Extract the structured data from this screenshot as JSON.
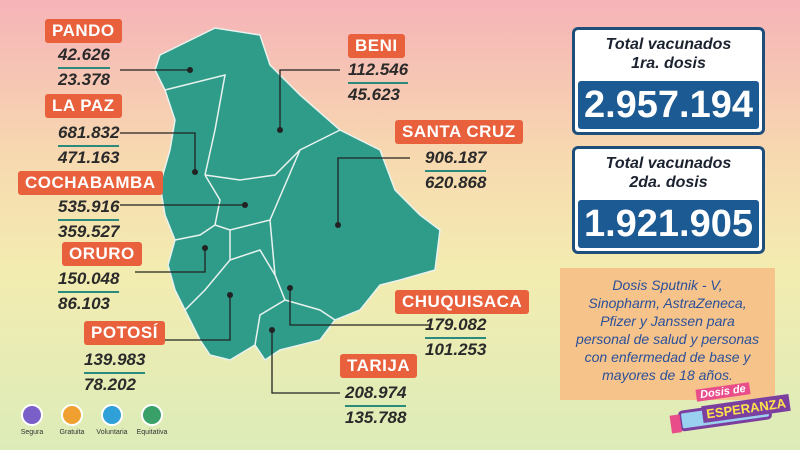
{
  "regions": [
    {
      "name": "PANDO",
      "first": "42.626",
      "second": "23.378"
    },
    {
      "name": "LA PAZ",
      "first": "681.832",
      "second": "471.163"
    },
    {
      "name": "COCHABAMBA",
      "first": "535.916",
      "second": "359.527"
    },
    {
      "name": "ORURO",
      "first": "150.048",
      "second": "86.103"
    },
    {
      "name": "POTOSÍ",
      "first": "139.983",
      "second": "78.202"
    },
    {
      "name": "BENI",
      "first": "112.546",
      "second": "45.623"
    },
    {
      "name": "SANTA CRUZ",
      "first": "906.187",
      "second": "620.868"
    },
    {
      "name": "CHUQUISACA",
      "first": "179.082",
      "second": "101.253"
    },
    {
      "name": "TARIJA",
      "first": "208.974",
      "second": "135.788"
    }
  ],
  "totals": [
    {
      "title": [
        "Total vacunados",
        "1ra. dosis"
      ],
      "value": "2.957.194"
    },
    {
      "title": [
        "Total vacunados",
        "2da. dosis"
      ],
      "value": "1.921.905"
    }
  ],
  "note": [
    "Dosis Sputnik - V,",
    "Sinopharm, AstraZeneca,",
    "Pfizer y Janssen para",
    "personal de salud y personas",
    "con enfermedad de base y",
    "mayores de 18 años."
  ],
  "badges": [
    "Segura",
    "Gratuita",
    "Voluntaria",
    "Equitativa"
  ],
  "logo": [
    "Dosis de",
    "ESPERANZA"
  ]
}
